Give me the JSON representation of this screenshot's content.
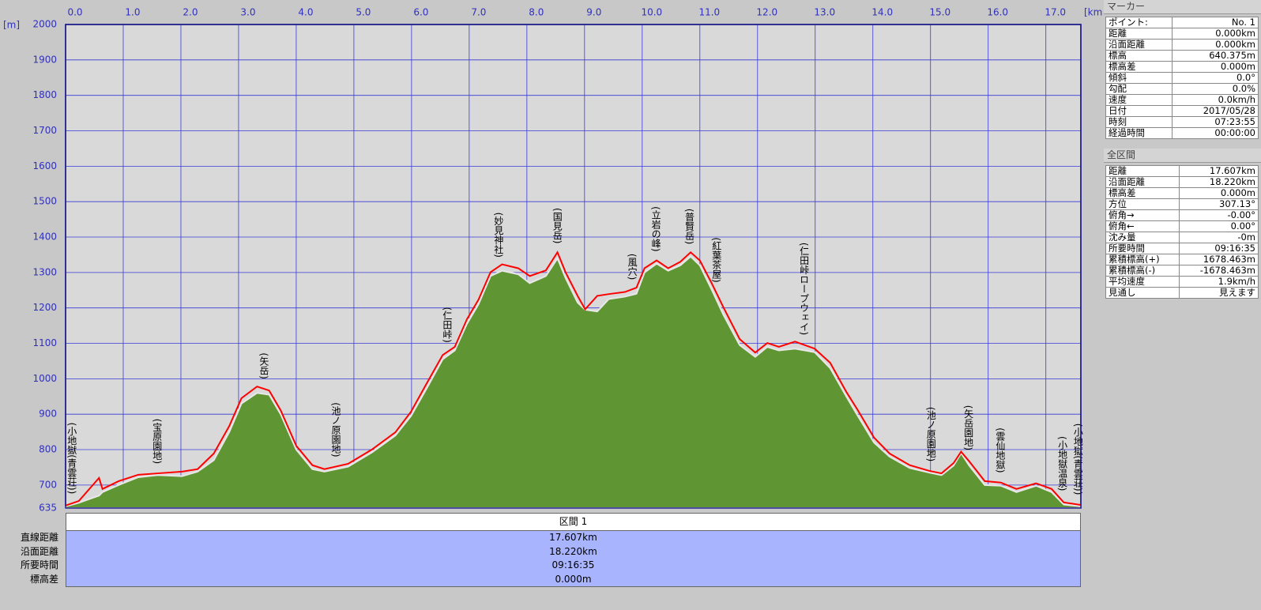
{
  "chart_data": {
    "type": "area",
    "ylabel": "[m]",
    "xlabel": "[km]",
    "xlim": [
      0,
      17.607
    ],
    "ylim": [
      635,
      2000
    ],
    "xticks": [
      {
        "value": 0,
        "label": "0.0"
      },
      {
        "value": 1,
        "label": "1.0"
      },
      {
        "value": 2,
        "label": "2.0"
      },
      {
        "value": 3,
        "label": "3.0"
      },
      {
        "value": 4,
        "label": "4.0"
      },
      {
        "value": 5,
        "label": "5.0"
      },
      {
        "value": 6,
        "label": "6.0"
      },
      {
        "value": 7,
        "label": "7.0"
      },
      {
        "value": 8,
        "label": "8.0"
      },
      {
        "value": 9,
        "label": "9.0"
      },
      {
        "value": 10,
        "label": "10.0"
      },
      {
        "value": 11,
        "label": "11.0"
      },
      {
        "value": 12,
        "label": "12.0"
      },
      {
        "value": 13,
        "label": "13.0"
      },
      {
        "value": 14,
        "label": "14.0"
      },
      {
        "value": 15,
        "label": "15.0"
      },
      {
        "value": 16,
        "label": "16.0"
      },
      {
        "value": 17,
        "label": "17.0"
      }
    ],
    "yticks": [
      635,
      700,
      800,
      900,
      1000,
      1100,
      1200,
      1300,
      1400,
      1500,
      1600,
      1700,
      1800,
      1900,
      2000
    ],
    "grid": true,
    "x": [
      0,
      0.23,
      0.58,
      0.64,
      0.92,
      1.26,
      1.6,
      2.02,
      2.29,
      2.57,
      2.84,
      3.05,
      3.32,
      3.53,
      3.73,
      4.0,
      4.28,
      4.49,
      4.9,
      5.31,
      5.72,
      5.99,
      6.27,
      6.54,
      6.75,
      6.96,
      7.16,
      7.37,
      7.57,
      7.85,
      8.05,
      8.33,
      8.53,
      8.67,
      8.88,
      9.01,
      9.22,
      9.42,
      9.7,
      9.9,
      10.04,
      10.25,
      10.45,
      10.66,
      10.84,
      11.0,
      11.21,
      11.41,
      11.69,
      11.96,
      12.17,
      12.37,
      12.65,
      12.99,
      13.26,
      13.54,
      13.74,
      14.02,
      14.29,
      14.64,
      14.98,
      15.19,
      15.4,
      15.53,
      15.67,
      15.94,
      16.22,
      16.49,
      16.83,
      17.1,
      17.31,
      17.6
    ],
    "series": [
      {
        "color": "#5f9532",
        "fill": true,
        "values": [
          640,
          650,
          670,
          680,
          700,
          722,
          728,
          725,
          738,
          770,
          850,
          930,
          960,
          955,
          900,
          800,
          745,
          738,
          752,
          792,
          840,
          895,
          975,
          1055,
          1080,
          1155,
          1210,
          1290,
          1305,
          1295,
          1270,
          1290,
          1340,
          1285,
          1215,
          1195,
          1190,
          1225,
          1232,
          1240,
          1300,
          1325,
          1305,
          1320,
          1345,
          1320,
          1250,
          1180,
          1095,
          1062,
          1090,
          1080,
          1085,
          1075,
          1030,
          950,
          895,
          820,
          780,
          748,
          735,
          728,
          755,
          790,
          755,
          700,
          698,
          680,
          698,
          680,
          645,
          640
        ]
      },
      {
        "color": "#ff0000",
        "fill": false,
        "values": [
          642,
          655,
          720,
          689,
          711,
          729,
          733,
          738,
          745,
          789,
          867,
          945,
          978,
          967,
          911,
          811,
          756,
          745,
          760,
          800,
          849,
          907,
          989,
          1067,
          1090,
          1168,
          1223,
          1301,
          1323,
          1312,
          1290,
          1306,
          1357,
          1301,
          1234,
          1196,
          1234,
          1239,
          1245,
          1257,
          1312,
          1334,
          1312,
          1330,
          1357,
          1334,
          1268,
          1201,
          1112,
          1074,
          1101,
          1090,
          1105,
          1085,
          1045,
          963,
          911,
          834,
          789,
          756,
          740,
          733,
          762,
          794,
          767,
          711,
          707,
          689,
          705,
          689,
          651,
          644
        ]
      }
    ],
    "annotations": [
      {
        "x": 0.1,
        "text": "(小地獄(青雲荘))"
      },
      {
        "x": 1.58,
        "text": "(宝原園地)"
      },
      {
        "x": 3.43,
        "text": "(矢岳)"
      },
      {
        "x": 4.68,
        "text": "(池ノ原園地)"
      },
      {
        "x": 6.61,
        "text": "(仁田峠)"
      },
      {
        "x": 7.5,
        "text": "(妙見神社)"
      },
      {
        "x": 8.52,
        "text": "(国見岳)"
      },
      {
        "x": 9.82,
        "text": "(風穴)"
      },
      {
        "x": 10.23,
        "text": "(立岩の峰)"
      },
      {
        "x": 10.81,
        "text": "(普賢岳)"
      },
      {
        "x": 11.28,
        "text": "(紅葉茶屋)"
      },
      {
        "x": 12.8,
        "text": "(仁田峠ロープウェイ)"
      },
      {
        "x": 15.0,
        "text": "(池ノ原園地)"
      },
      {
        "x": 15.65,
        "text": "(矢岳園地)"
      },
      {
        "x": 16.2,
        "text": "(雲仙地獄)"
      },
      {
        "x": 17.28,
        "text": "(小地獄温泉)"
      },
      {
        "x": 17.55,
        "text": "(小地獄(青雲荘))"
      }
    ]
  },
  "marker_panel": {
    "title": "マーカー",
    "rows": [
      [
        "ポイント:",
        "No. 1"
      ],
      [
        "距離",
        "0.000km"
      ],
      [
        "沿面距離",
        "0.000km"
      ],
      [
        "標高",
        "640.375m"
      ],
      [
        "標高差",
        "0.000m"
      ],
      [
        "傾斜",
        "0.0°"
      ],
      [
        "勾配",
        "0.0%"
      ],
      [
        "速度",
        "0.0km/h"
      ],
      [
        "日付",
        "2017/05/28"
      ],
      [
        "時刻",
        "07:23:55"
      ],
      [
        "経過時間",
        "00:00:00"
      ]
    ]
  },
  "total_panel": {
    "title": "全区間",
    "rows": [
      [
        "距離",
        "17.607km"
      ],
      [
        "沿面距離",
        "18.220km"
      ],
      [
        "標高差",
        "0.000m"
      ],
      [
        "方位",
        "307.13°"
      ],
      [
        "俯角→",
        "-0.00°"
      ],
      [
        "俯角←",
        "0.00°"
      ],
      [
        "沈み量",
        "-0m"
      ],
      [
        "所要時間",
        "09:16:35"
      ],
      [
        "累積標高(+)",
        "1678.463m"
      ],
      [
        "累積標高(-)",
        "-1678.463m"
      ],
      [
        "平均速度",
        "1.9km/h"
      ],
      [
        "見通し",
        "見えます"
      ]
    ]
  },
  "section_table": {
    "header": "区間 1",
    "rows": [
      [
        "直線距離",
        "17.607km"
      ],
      [
        "沿面距離",
        "18.220km"
      ],
      [
        "所要時間",
        "09:16:35"
      ],
      [
        "標高差",
        "0.000m"
      ]
    ]
  }
}
